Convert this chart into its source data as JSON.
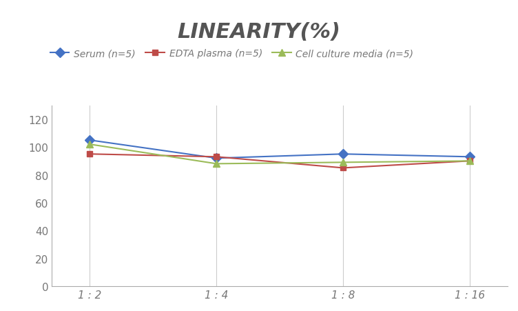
{
  "title": "LINEARITY(%)",
  "title_fontsize": 22,
  "title_fontstyle": "italic",
  "title_fontweight": "bold",
  "title_color": "#555555",
  "x_labels": [
    "1 : 2",
    "1 : 4",
    "1 : 8",
    "1 : 16"
  ],
  "x_positions": [
    0,
    1,
    2,
    3
  ],
  "series": [
    {
      "label": "Serum (n=5)",
      "values": [
        105,
        92,
        95,
        93
      ],
      "color": "#4472C4",
      "marker": "D",
      "marker_size": 7,
      "linewidth": 1.5
    },
    {
      "label": "EDTA plasma (n=5)",
      "values": [
        95,
        93,
        85,
        90
      ],
      "color": "#BE4B48",
      "marker": "s",
      "marker_size": 6,
      "linewidth": 1.5
    },
    {
      "label": "Cell culture media (n=5)",
      "values": [
        102,
        88,
        89,
        90
      ],
      "color": "#9BBB59",
      "marker": "^",
      "marker_size": 7,
      "linewidth": 1.5
    }
  ],
  "ylim": [
    0,
    130
  ],
  "yticks": [
    0,
    20,
    40,
    60,
    80,
    100,
    120
  ],
  "background_color": "#ffffff",
  "grid_color": "#cccccc",
  "legend_fontsize": 10,
  "axis_fontsize": 11,
  "tick_color": "#777777"
}
